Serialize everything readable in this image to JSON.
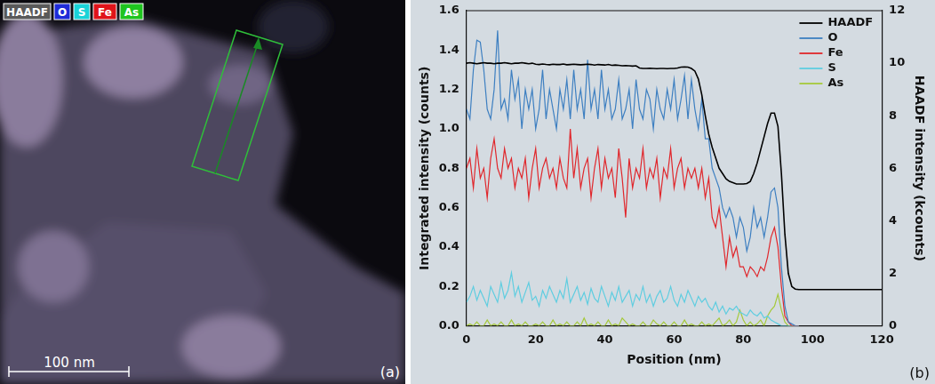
{
  "image_panel": {
    "channels": [
      {
        "name": "HAADF",
        "color": "#5a5a5a"
      },
      {
        "name": "O",
        "color": "#1f2bd8"
      },
      {
        "name": "S",
        "color": "#19d3d8"
      },
      {
        "name": "Fe",
        "color": "#e0141a"
      },
      {
        "name": "As",
        "color": "#1fc41f"
      }
    ],
    "scale_bar": "100 nm",
    "panel_label": "(a)"
  },
  "chart_data": {
    "type": "line",
    "panel_label": "(b)",
    "x_label": "Position (nm)",
    "y_label": "Integrated intensity (counts)",
    "y2_label": "HAADF intensity (kcounts)",
    "xlim": [
      0,
      120
    ],
    "xticks": [
      0,
      20,
      40,
      60,
      80,
      100,
      120
    ],
    "ylim": [
      0,
      1.6
    ],
    "yticks": [
      {
        "value": 0,
        "label": "0.0"
      },
      0.2,
      0.4,
      0.6,
      0.8,
      {
        "value": 1,
        "label": "1.0"
      },
      1.2,
      1.4,
      1.6
    ],
    "y2lim": [
      0,
      12
    ],
    "y2ticks": [
      0,
      2,
      4,
      6,
      8,
      10,
      12
    ],
    "grid": false,
    "legend": "upper right",
    "x": [
      0,
      1,
      2,
      3,
      4,
      5,
      6,
      7,
      8,
      9,
      10,
      11,
      12,
      13,
      14,
      15,
      16,
      17,
      18,
      19,
      20,
      21,
      22,
      23,
      24,
      25,
      26,
      27,
      28,
      29,
      30,
      31,
      32,
      33,
      34,
      35,
      36,
      37,
      38,
      39,
      40,
      41,
      42,
      43,
      44,
      45,
      46,
      47,
      48,
      49,
      50,
      51,
      52,
      53,
      54,
      55,
      56,
      57,
      58,
      59,
      60,
      61,
      62,
      63,
      64,
      65,
      66,
      67,
      68,
      69,
      70,
      71,
      72,
      73,
      74,
      75,
      76,
      77,
      78,
      79,
      80,
      81,
      82,
      83,
      84,
      85,
      86,
      87,
      88,
      89,
      90,
      91,
      92,
      93,
      94,
      95,
      96,
      97,
      98,
      99,
      100,
      101,
      102,
      103,
      104,
      105,
      106,
      107,
      108,
      109,
      110,
      111,
      112,
      113,
      114,
      115,
      116,
      117,
      118,
      119,
      120
    ],
    "series": [
      {
        "name": "HAADF",
        "color": "#000000",
        "axis": "y2",
        "values": [
          10.0,
          10.02,
          10.0,
          9.98,
          10.0,
          10.02,
          10.0,
          10.0,
          9.98,
          10.0,
          10.0,
          10.02,
          10.0,
          9.98,
          10.0,
          10.0,
          10.02,
          10.0,
          9.98,
          10.0,
          9.96,
          9.95,
          9.97,
          9.95,
          9.94,
          9.96,
          9.95,
          9.95,
          9.97,
          9.94,
          9.95,
          9.96,
          9.95,
          9.94,
          9.95,
          9.96,
          9.95,
          9.93,
          9.95,
          9.94,
          9.93,
          9.95,
          9.92,
          9.93,
          9.92,
          9.9,
          9.91,
          9.9,
          9.89,
          9.9,
          9.82,
          9.8,
          9.8,
          9.81,
          9.8,
          9.79,
          9.8,
          9.8,
          9.79,
          9.8,
          9.8,
          9.82,
          9.85,
          9.86,
          9.85,
          9.8,
          9.7,
          9.4,
          8.8,
          8.0,
          7.3,
          6.8,
          6.4,
          6.0,
          5.8,
          5.6,
          5.5,
          5.45,
          5.4,
          5.4,
          5.4,
          5.42,
          5.5,
          5.8,
          6.2,
          6.7,
          7.2,
          7.7,
          8.1,
          8.1,
          7.6,
          5.8,
          3.5,
          2.0,
          1.5,
          1.4,
          1.38,
          1.38,
          1.38,
          1.38,
          1.38,
          1.38,
          1.38,
          1.38,
          1.38,
          1.38,
          1.38,
          1.38,
          1.38,
          1.38,
          1.38,
          1.38,
          1.38,
          1.38,
          1.38,
          1.38,
          1.38,
          1.38,
          1.38,
          1.38,
          1.38
        ]
      },
      {
        "name": "O",
        "color": "#3d7fc1",
        "values": [
          1.1,
          1.05,
          1.3,
          1.45,
          1.44,
          1.3,
          1.1,
          1.05,
          1.2,
          1.5,
          1.1,
          1.15,
          1.05,
          1.3,
          1.15,
          1.25,
          1.0,
          1.2,
          1.1,
          1.2,
          1.0,
          1.1,
          1.3,
          1.05,
          1.2,
          1.1,
          1.0,
          1.2,
          1.1,
          1.25,
          1.05,
          1.3,
          1.1,
          1.2,
          1.05,
          1.35,
          1.1,
          1.2,
          1.05,
          1.3,
          1.1,
          1.2,
          1.05,
          1.1,
          1.25,
          1.05,
          1.1,
          1.2,
          1.0,
          1.25,
          1.1,
          1.05,
          1.2,
          1.15,
          1.0,
          1.2,
          1.1,
          1.05,
          1.2,
          1.1,
          1.25,
          1.05,
          1.15,
          1.27,
          1.05,
          1.25,
          1.1,
          1.0,
          1.15,
          0.95,
          0.95,
          0.8,
          0.75,
          0.7,
          0.6,
          0.55,
          0.6,
          0.55,
          0.45,
          0.55,
          0.5,
          0.38,
          0.45,
          0.6,
          0.5,
          0.55,
          0.45,
          0.55,
          0.68,
          0.7,
          0.6,
          0.3,
          0.1,
          0.02,
          0.01,
          0.0,
          0.0,
          null,
          null,
          null,
          null,
          null,
          null,
          null,
          null,
          null,
          null,
          null,
          null,
          null,
          null,
          null,
          null,
          null,
          null,
          null,
          null,
          null,
          null,
          null,
          null
        ]
      },
      {
        "name": "Fe",
        "color": "#e0262b",
        "values": [
          0.8,
          0.85,
          0.7,
          0.9,
          0.75,
          0.8,
          0.65,
          0.85,
          0.95,
          0.8,
          0.75,
          0.9,
          0.8,
          0.85,
          0.7,
          0.8,
          0.75,
          0.85,
          0.65,
          0.8,
          0.9,
          0.7,
          0.8,
          0.85,
          0.75,
          0.8,
          0.7,
          0.85,
          0.75,
          0.7,
          1.0,
          0.75,
          0.9,
          0.7,
          0.8,
          0.85,
          0.65,
          0.8,
          0.9,
          0.7,
          0.85,
          0.75,
          0.8,
          0.65,
          0.9,
          0.75,
          0.55,
          0.85,
          0.7,
          0.8,
          0.75,
          0.9,
          0.7,
          0.8,
          0.75,
          0.85,
          0.65,
          0.8,
          0.75,
          0.9,
          0.7,
          0.8,
          0.85,
          0.7,
          0.8,
          0.75,
          0.8,
          0.7,
          0.8,
          0.65,
          0.75,
          0.55,
          0.5,
          0.6,
          0.45,
          0.3,
          0.45,
          0.35,
          0.4,
          0.3,
          0.3,
          0.25,
          0.3,
          0.28,
          0.25,
          0.3,
          0.28,
          0.35,
          0.45,
          0.5,
          0.4,
          0.2,
          0.05,
          0.02,
          0.0,
          0.0,
          0.0,
          null,
          null,
          null,
          null,
          null,
          null,
          null,
          null,
          null,
          null,
          null,
          null,
          null,
          null,
          null,
          null,
          null,
          null,
          null,
          null,
          null,
          null,
          null,
          null
        ]
      },
      {
        "name": "S",
        "color": "#5fcde0",
        "values": [
          0.12,
          0.15,
          0.2,
          0.13,
          0.18,
          0.14,
          0.1,
          0.2,
          0.16,
          0.12,
          0.22,
          0.14,
          0.18,
          0.27,
          0.15,
          0.2,
          0.12,
          0.17,
          0.22,
          0.13,
          0.15,
          0.1,
          0.18,
          0.14,
          0.2,
          0.16,
          0.12,
          0.18,
          0.14,
          0.24,
          0.12,
          0.16,
          0.2,
          0.13,
          0.17,
          0.11,
          0.19,
          0.14,
          0.12,
          0.2,
          0.15,
          0.1,
          0.17,
          0.13,
          0.2,
          0.12,
          0.15,
          0.18,
          0.1,
          0.16,
          0.13,
          0.2,
          0.12,
          0.16,
          0.1,
          0.15,
          0.18,
          0.12,
          0.14,
          0.2,
          0.13,
          0.1,
          0.16,
          0.12,
          0.18,
          0.14,
          0.1,
          0.15,
          0.12,
          0.14,
          0.1,
          0.08,
          0.12,
          0.07,
          0.1,
          0.06,
          0.09,
          0.08,
          0.1,
          0.07,
          0.06,
          0.05,
          0.08,
          0.06,
          0.05,
          0.07,
          0.04,
          0.05,
          0.03,
          0.02,
          0.01,
          0.0,
          0.0,
          0.0,
          0.0,
          0.0,
          0.0,
          null,
          null,
          null,
          null,
          null,
          null,
          null,
          null,
          null,
          null,
          null,
          null,
          null,
          null,
          null,
          null,
          null,
          null,
          null,
          null,
          null,
          null,
          null,
          null
        ]
      },
      {
        "name": "As",
        "color": "#a5c93a",
        "values": [
          0.0,
          0.01,
          0.0,
          0.02,
          0.0,
          0.0,
          0.03,
          0.0,
          0.01,
          0.0,
          0.02,
          0.0,
          0.0,
          0.03,
          0.0,
          0.01,
          0.0,
          0.02,
          0.0,
          0.0,
          0.01,
          0.0,
          0.02,
          0.0,
          0.0,
          0.03,
          0.0,
          0.01,
          0.0,
          0.02,
          0.0,
          0.0,
          0.02,
          0.0,
          0.04,
          0.0,
          0.01,
          0.0,
          0.02,
          0.0,
          0.0,
          0.03,
          0.0,
          0.01,
          0.0,
          0.04,
          0.02,
          0.0,
          0.01,
          0.0,
          0.0,
          0.02,
          0.0,
          0.0,
          0.03,
          0.01,
          0.0,
          0.02,
          0.0,
          0.0,
          0.02,
          0.0,
          0.0,
          0.03,
          0.0,
          0.01,
          0.0,
          0.0,
          0.02,
          0.0,
          0.01,
          0.0,
          0.02,
          0.04,
          0.0,
          0.01,
          0.03,
          0.0,
          0.02,
          0.08,
          0.03,
          0.0,
          0.02,
          0.0,
          0.01,
          0.03,
          0.0,
          0.05,
          0.08,
          0.1,
          0.16,
          0.08,
          0.02,
          0.0,
          0.0,
          0.0,
          0.0,
          null,
          null,
          null,
          null,
          null,
          null,
          null,
          null,
          null,
          null,
          null,
          null,
          null,
          null,
          null,
          null,
          null,
          null,
          null,
          null,
          null,
          null,
          null,
          null
        ]
      }
    ]
  }
}
